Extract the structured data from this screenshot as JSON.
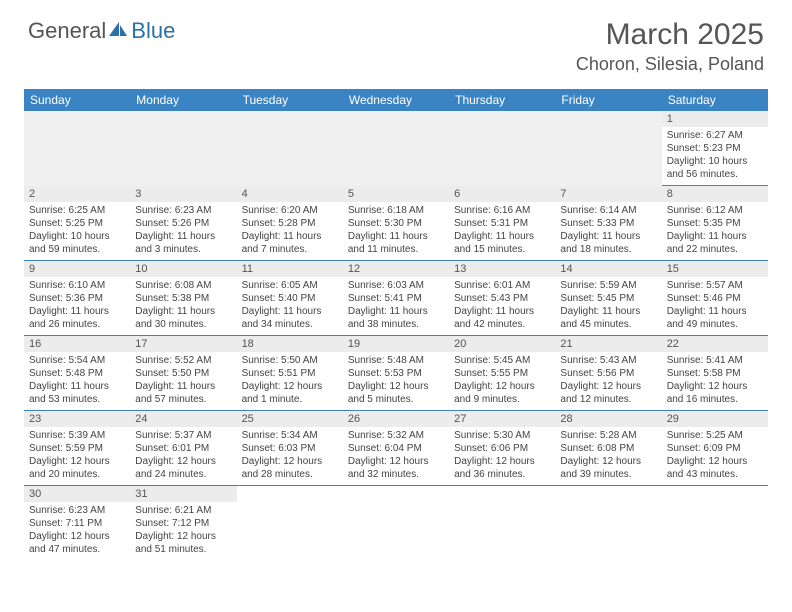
{
  "logo": {
    "text1": "General",
    "text2": "Blue",
    "color1": "#666666",
    "color2": "#2f6fa8"
  },
  "title": "March 2025",
  "location": "Choron, Silesia, Poland",
  "header_bg": "#3b84c4",
  "day_names": [
    "Sunday",
    "Monday",
    "Tuesday",
    "Wednesday",
    "Thursday",
    "Friday",
    "Saturday"
  ],
  "weeks": [
    [
      null,
      null,
      null,
      null,
      null,
      null,
      {
        "n": "1",
        "sr": "6:27 AM",
        "ss": "5:23 PM",
        "dl": "10 hours and 56 minutes."
      }
    ],
    [
      {
        "n": "2",
        "sr": "6:25 AM",
        "ss": "5:25 PM",
        "dl": "10 hours and 59 minutes."
      },
      {
        "n": "3",
        "sr": "6:23 AM",
        "ss": "5:26 PM",
        "dl": "11 hours and 3 minutes."
      },
      {
        "n": "4",
        "sr": "6:20 AM",
        "ss": "5:28 PM",
        "dl": "11 hours and 7 minutes."
      },
      {
        "n": "5",
        "sr": "6:18 AM",
        "ss": "5:30 PM",
        "dl": "11 hours and 11 minutes."
      },
      {
        "n": "6",
        "sr": "6:16 AM",
        "ss": "5:31 PM",
        "dl": "11 hours and 15 minutes."
      },
      {
        "n": "7",
        "sr": "6:14 AM",
        "ss": "5:33 PM",
        "dl": "11 hours and 18 minutes."
      },
      {
        "n": "8",
        "sr": "6:12 AM",
        "ss": "5:35 PM",
        "dl": "11 hours and 22 minutes."
      }
    ],
    [
      {
        "n": "9",
        "sr": "6:10 AM",
        "ss": "5:36 PM",
        "dl": "11 hours and 26 minutes."
      },
      {
        "n": "10",
        "sr": "6:08 AM",
        "ss": "5:38 PM",
        "dl": "11 hours and 30 minutes."
      },
      {
        "n": "11",
        "sr": "6:05 AM",
        "ss": "5:40 PM",
        "dl": "11 hours and 34 minutes."
      },
      {
        "n": "12",
        "sr": "6:03 AM",
        "ss": "5:41 PM",
        "dl": "11 hours and 38 minutes."
      },
      {
        "n": "13",
        "sr": "6:01 AM",
        "ss": "5:43 PM",
        "dl": "11 hours and 42 minutes."
      },
      {
        "n": "14",
        "sr": "5:59 AM",
        "ss": "5:45 PM",
        "dl": "11 hours and 45 minutes."
      },
      {
        "n": "15",
        "sr": "5:57 AM",
        "ss": "5:46 PM",
        "dl": "11 hours and 49 minutes."
      }
    ],
    [
      {
        "n": "16",
        "sr": "5:54 AM",
        "ss": "5:48 PM",
        "dl": "11 hours and 53 minutes."
      },
      {
        "n": "17",
        "sr": "5:52 AM",
        "ss": "5:50 PM",
        "dl": "11 hours and 57 minutes."
      },
      {
        "n": "18",
        "sr": "5:50 AM",
        "ss": "5:51 PM",
        "dl": "12 hours and 1 minute."
      },
      {
        "n": "19",
        "sr": "5:48 AM",
        "ss": "5:53 PM",
        "dl": "12 hours and 5 minutes."
      },
      {
        "n": "20",
        "sr": "5:45 AM",
        "ss": "5:55 PM",
        "dl": "12 hours and 9 minutes."
      },
      {
        "n": "21",
        "sr": "5:43 AM",
        "ss": "5:56 PM",
        "dl": "12 hours and 12 minutes."
      },
      {
        "n": "22",
        "sr": "5:41 AM",
        "ss": "5:58 PM",
        "dl": "12 hours and 16 minutes."
      }
    ],
    [
      {
        "n": "23",
        "sr": "5:39 AM",
        "ss": "5:59 PM",
        "dl": "12 hours and 20 minutes."
      },
      {
        "n": "24",
        "sr": "5:37 AM",
        "ss": "6:01 PM",
        "dl": "12 hours and 24 minutes."
      },
      {
        "n": "25",
        "sr": "5:34 AM",
        "ss": "6:03 PM",
        "dl": "12 hours and 28 minutes."
      },
      {
        "n": "26",
        "sr": "5:32 AM",
        "ss": "6:04 PM",
        "dl": "12 hours and 32 minutes."
      },
      {
        "n": "27",
        "sr": "5:30 AM",
        "ss": "6:06 PM",
        "dl": "12 hours and 36 minutes."
      },
      {
        "n": "28",
        "sr": "5:28 AM",
        "ss": "6:08 PM",
        "dl": "12 hours and 39 minutes."
      },
      {
        "n": "29",
        "sr": "5:25 AM",
        "ss": "6:09 PM",
        "dl": "12 hours and 43 minutes."
      }
    ],
    [
      {
        "n": "30",
        "sr": "6:23 AM",
        "ss": "7:11 PM",
        "dl": "12 hours and 47 minutes."
      },
      {
        "n": "31",
        "sr": "6:21 AM",
        "ss": "7:12 PM",
        "dl": "12 hours and 51 minutes."
      },
      null,
      null,
      null,
      null,
      null
    ]
  ],
  "labels": {
    "sunrise": "Sunrise:",
    "sunset": "Sunset:",
    "daylight": "Daylight:"
  }
}
